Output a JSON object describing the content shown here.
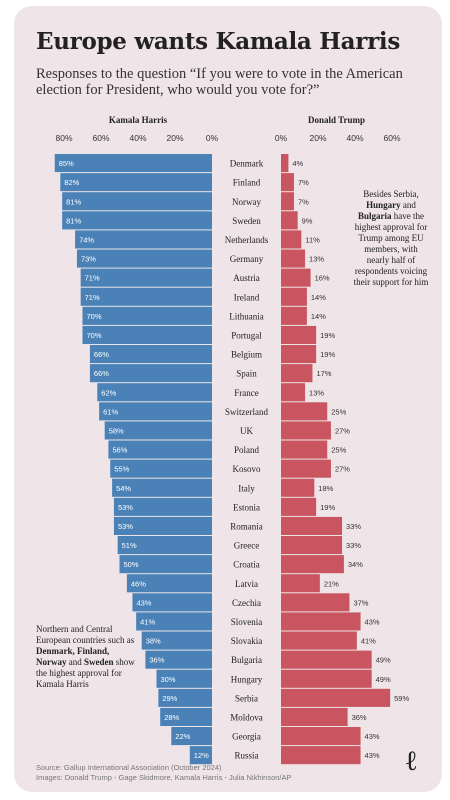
{
  "title": "Europe wants Kamala Harris",
  "subtitle": "Responses to the question “If you were to vote in the American election for President, who would you vote for?”",
  "chart_data": {
    "type": "bar",
    "categories": [
      "Denmark",
      "Finland",
      "Norway",
      "Sweden",
      "Netherlands",
      "Germany",
      "Austria",
      "Ireland",
      "Lithuania",
      "Portugal",
      "Belgium",
      "Spain",
      "France",
      "Switzerland",
      "UK",
      "Poland",
      "Kosovo",
      "Italy",
      "Estonia",
      "Romania",
      "Greece",
      "Croatia",
      "Latvia",
      "Czechia",
      "Slovenia",
      "Slovakia",
      "Bulgaria",
      "Hungary",
      "Serbia",
      "Moldova",
      "Georgia",
      "Russia"
    ],
    "series": [
      {
        "name": "Kamala Harris",
        "values": [
          85,
          82,
          81,
          81,
          74,
          73,
          71,
          71,
          70,
          70,
          66,
          66,
          62,
          61,
          58,
          56,
          55,
          54,
          53,
          53,
          51,
          50,
          46,
          43,
          41,
          38,
          36,
          30,
          29,
          28,
          22,
          12
        ],
        "color": "#4a82b8"
      },
      {
        "name": "Donald Trump",
        "values": [
          4,
          7,
          7,
          9,
          11,
          13,
          16,
          14,
          14,
          19,
          19,
          17,
          13,
          25,
          27,
          25,
          27,
          18,
          19,
          33,
          33,
          34,
          21,
          37,
          43,
          41,
          49,
          49,
          59,
          36,
          43,
          43
        ],
        "color": "#c8555f"
      }
    ],
    "harris_ticks": [
      "80%",
      "60%",
      "40%",
      "20%",
      "0%"
    ],
    "trump_ticks": [
      "0%",
      "20%",
      "40%",
      "60%"
    ],
    "xlim": [
      0,
      90
    ]
  },
  "notes": {
    "left": {
      "pre": "Northern and Central European countries such as ",
      "b1": "Denmark, Finland, Norway",
      "mid": " and ",
      "b2": "Sweden",
      "post": " show the highest approval for Kamala Harris"
    },
    "right": {
      "pre": "Besides Serbia, ",
      "b1": "Hungary",
      "mid": " and ",
      "b2": "Bulgaria",
      "post": " have the highest approval for Trump among EU members, with nearly half of respondents voicing their support for him"
    }
  },
  "source": {
    "line1": "Source: Gallup International Association (October 2024)",
    "line2": "Images: Donald Trump - Gage Skidmore, Kamala Harris - Julia Nikhinson/AP"
  },
  "logo": "ℓ",
  "colors": {
    "background": "#efe4e7",
    "harris": "#4a82b8",
    "trump": "#c8555f",
    "text": "#222222"
  }
}
